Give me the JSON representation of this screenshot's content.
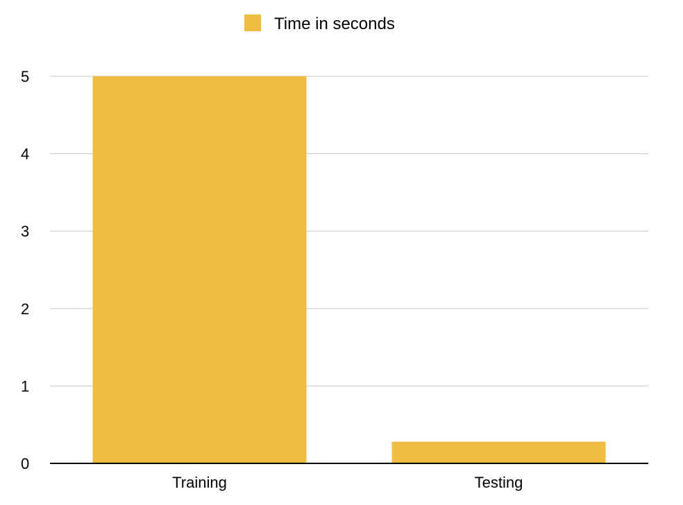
{
  "chart_data": {
    "type": "bar",
    "categories": [
      "Training",
      "Testing"
    ],
    "series": [
      {
        "name": "Time in seconds",
        "values": [
          5.0,
          0.28
        ],
        "color": "#EEBD42"
      }
    ],
    "ylim": [
      0,
      5
    ],
    "yticks": [
      "0",
      "1",
      "2",
      "3",
      "4",
      "5"
    ],
    "grid": true,
    "legend_position": "top-center",
    "gridline_color": "#C6C6C6",
    "axis_color": "#000000"
  }
}
